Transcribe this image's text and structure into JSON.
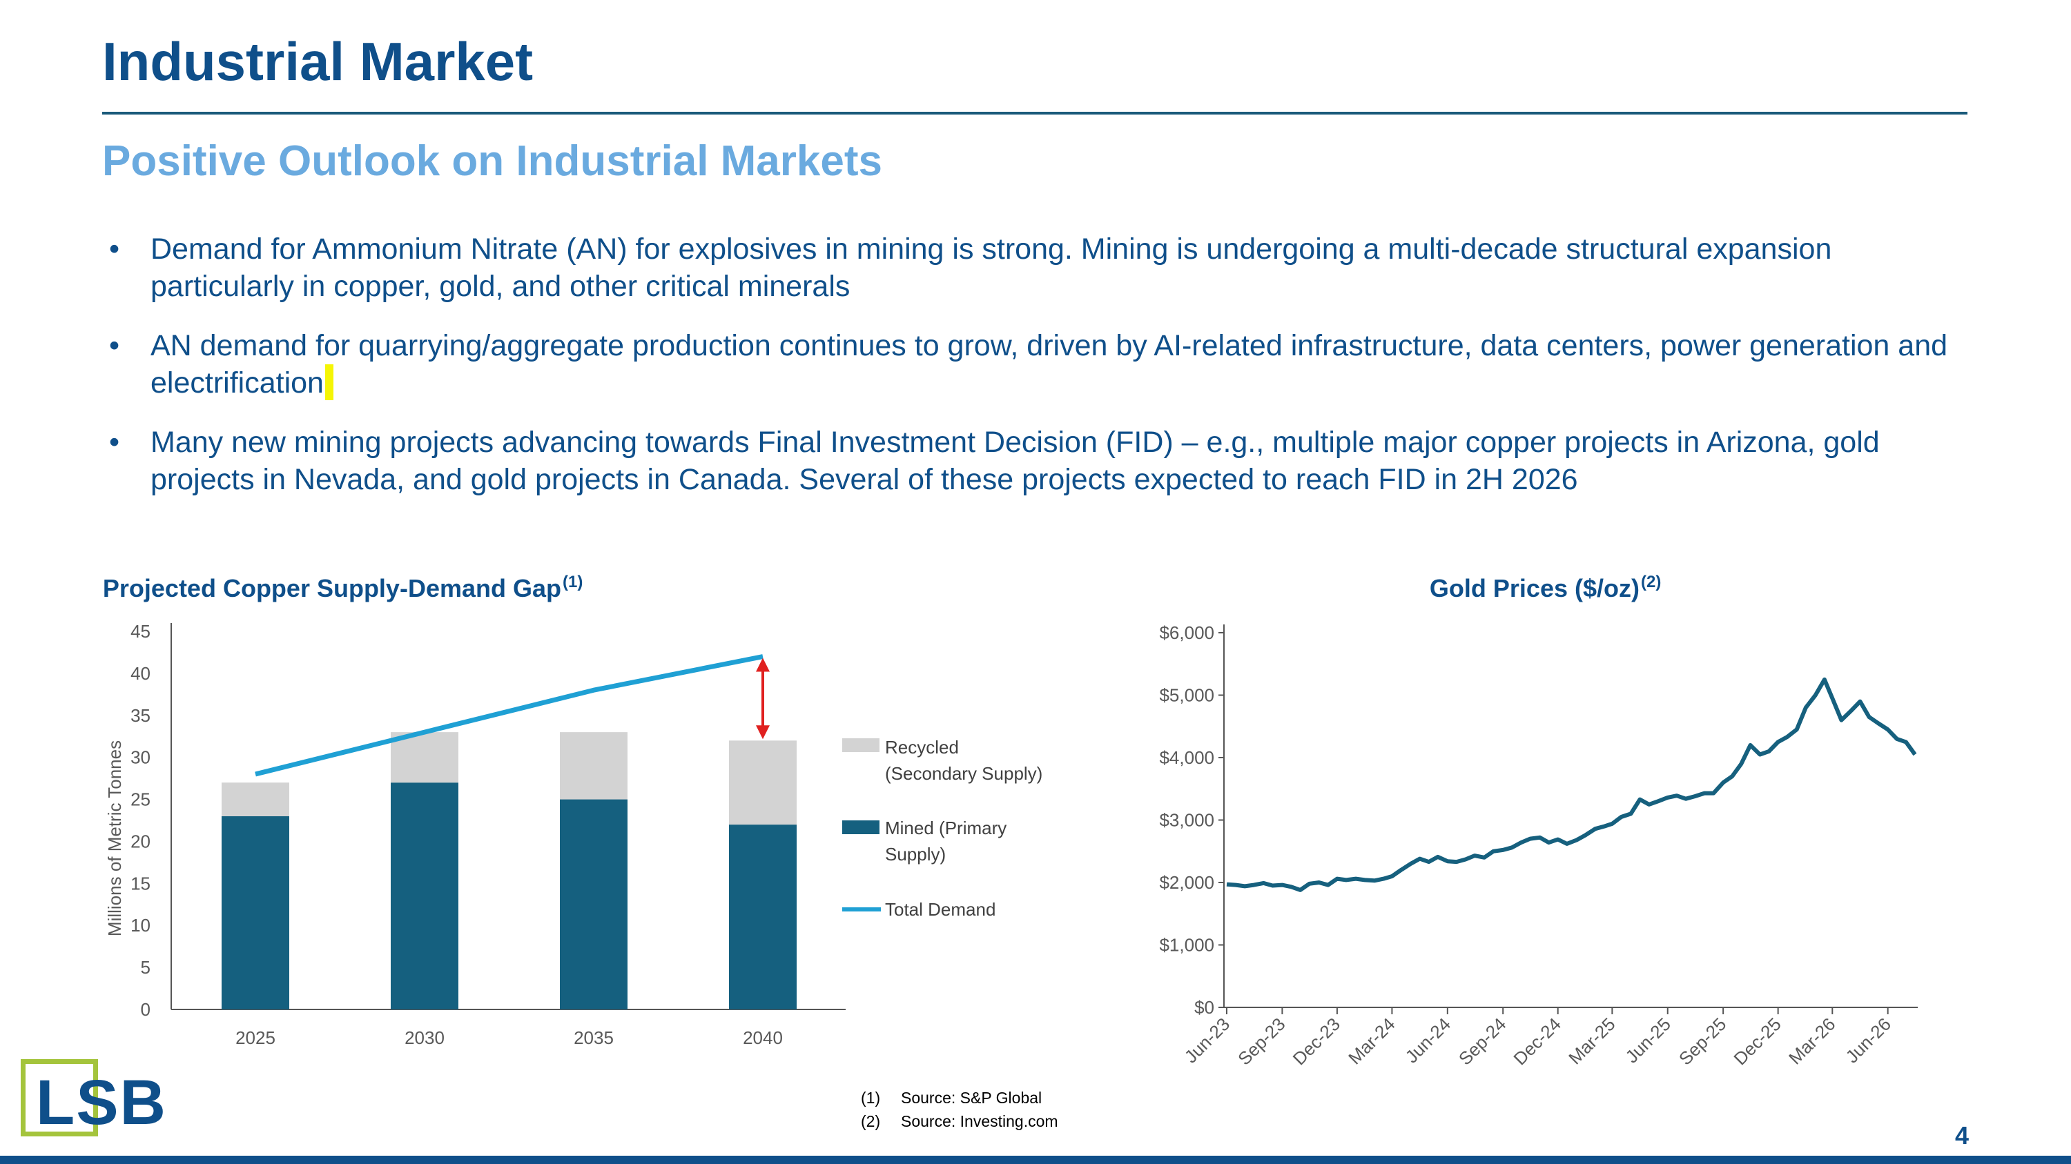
{
  "title": "Industrial Market",
  "subtitle": "Positive Outlook on Industrial Markets",
  "bullets": [
    "Demand for Ammonium Nitrate (AN) for explosives in mining is strong. Mining is undergoing a multi-decade structural expansion particularly in copper, gold, and other critical minerals",
    "AN demand for quarrying/aggregate production continues to grow, driven by AI-related infrastructure, data centers, power generation and electrification",
    "Many new mining projects advancing towards Final Investment Decision (FID) – e.g., multiple major copper projects in Arizona, gold projects in Nevada, and gold projects in Canada. Several of these projects expected to reach FID in 2H 2026"
  ],
  "bullet_symbol": "•",
  "logo_text": "LSB",
  "colors": {
    "title": "#0f4f8a",
    "subtitle": "#6aaadf",
    "mined": "#15607f",
    "recycled": "#d3d3d3",
    "demand": "#1fa0d4",
    "gap_arrow": "#e0201f",
    "gold_line": "#16607e",
    "logo_border": "#a4c43c"
  },
  "sources": [
    {
      "num": "(1)",
      "text": "Source: S&P Global"
    },
    {
      "num": "(2)",
      "text": "Source: Investing.com"
    }
  ],
  "page_number": "4",
  "chart_data": [
    {
      "type": "bar",
      "stacked": true,
      "title": "Projected Copper Supply-Demand Gap",
      "title_sup": "(1)",
      "xlabel": "",
      "ylabel": "Millions of Metric Tonnes",
      "categories": [
        "2025",
        "2030",
        "2035",
        "2040"
      ],
      "series": [
        {
          "name": "Mined (Primary Supply)",
          "kind": "bar",
          "values": [
            23,
            27,
            25,
            22
          ]
        },
        {
          "name": "Recycled (Secondary Supply)",
          "kind": "bar",
          "values": [
            4,
            6,
            8,
            10
          ]
        },
        {
          "name": "Total Demand",
          "kind": "line",
          "values": [
            28,
            33,
            38,
            42
          ]
        }
      ],
      "legend": [
        "Recycled (Secondary Supply)",
        "Mined (Primary Supply)",
        "Total Demand"
      ],
      "legend_position": "right",
      "ylim": [
        0,
        45
      ],
      "yticks": [
        0,
        5,
        10,
        15,
        20,
        25,
        30,
        35,
        40,
        45
      ],
      "annotation": "double-headed arrow at 2040 between total supply and total demand",
      "grid": false
    },
    {
      "type": "line",
      "title": "Gold Prices ($/oz)",
      "title_sup": "(2)",
      "xlabel": "",
      "ylabel": "",
      "ylim": [
        0,
        6000
      ],
      "yticks": [
        "$0",
        "$1,000",
        "$2,000",
        "$3,000",
        "$4,000",
        "$5,000",
        "$6,000"
      ],
      "xticks": [
        "Jun-23",
        "Sep-23",
        "Dec-23",
        "Mar-24",
        "Jun-24",
        "Sep-24",
        "Dec-24",
        "Mar-25",
        "Jun-25",
        "Sep-25",
        "Dec-25",
        "Mar-26",
        "Jun-26"
      ],
      "grid": false,
      "series": [
        {
          "name": "",
          "x": [
            "2023-06-01",
            "2023-06-16",
            "2023-07-01",
            "2023-07-16",
            "2023-08-01",
            "2023-08-16",
            "2023-09-01",
            "2023-09-16",
            "2023-10-01",
            "2023-10-16",
            "2023-11-01",
            "2023-11-16",
            "2023-12-01",
            "2023-12-16",
            "2024-01-01",
            "2024-01-16",
            "2024-02-01",
            "2024-02-16",
            "2024-03-01",
            "2024-03-16",
            "2024-04-01",
            "2024-04-16",
            "2024-05-01",
            "2024-05-16",
            "2024-06-01",
            "2024-06-16",
            "2024-07-01",
            "2024-07-16",
            "2024-08-01",
            "2024-08-16",
            "2024-09-01",
            "2024-09-16",
            "2024-10-01",
            "2024-10-16",
            "2024-11-01",
            "2024-11-16",
            "2024-12-01",
            "2024-12-16",
            "2025-01-01",
            "2025-01-16",
            "2025-02-01",
            "2025-02-16",
            "2025-03-01",
            "2025-03-16",
            "2025-04-01",
            "2025-04-16",
            "2025-05-01",
            "2025-05-16",
            "2025-06-01",
            "2025-06-16",
            "2025-07-01",
            "2025-07-16",
            "2025-08-01",
            "2025-08-16",
            "2025-09-01",
            "2025-09-16",
            "2025-10-01",
            "2025-10-16",
            "2025-11-01",
            "2025-11-16",
            "2025-12-01",
            "2025-12-16",
            "2026-01-01",
            "2026-01-16",
            "2026-02-01",
            "2026-02-16",
            "2026-03-01",
            "2026-03-16",
            "2026-04-01",
            "2026-04-16",
            "2026-05-01",
            "2026-05-16",
            "2026-06-01",
            "2026-06-16",
            "2026-07-01",
            "2026-07-16"
          ],
          "values": [
            1970,
            1960,
            1940,
            1960,
            1990,
            1950,
            1960,
            1930,
            1880,
            1980,
            2000,
            1960,
            2060,
            2040,
            2060,
            2040,
            2030,
            2060,
            2100,
            2200,
            2300,
            2380,
            2330,
            2410,
            2340,
            2330,
            2370,
            2430,
            2400,
            2500,
            2520,
            2560,
            2640,
            2700,
            2720,
            2640,
            2690,
            2620,
            2680,
            2760,
            2860,
            2900,
            2940,
            3050,
            3100,
            3330,
            3250,
            3300,
            3360,
            3390,
            3340,
            3380,
            3430,
            3430,
            3600,
            3700,
            3900,
            4200,
            4050,
            4100,
            4250,
            4330,
            4450,
            4800,
            5000,
            5250,
            4950,
            4600,
            4750,
            4900,
            4650,
            4550,
            4450,
            4300,
            4250,
            4050
          ]
        }
      ]
    }
  ]
}
